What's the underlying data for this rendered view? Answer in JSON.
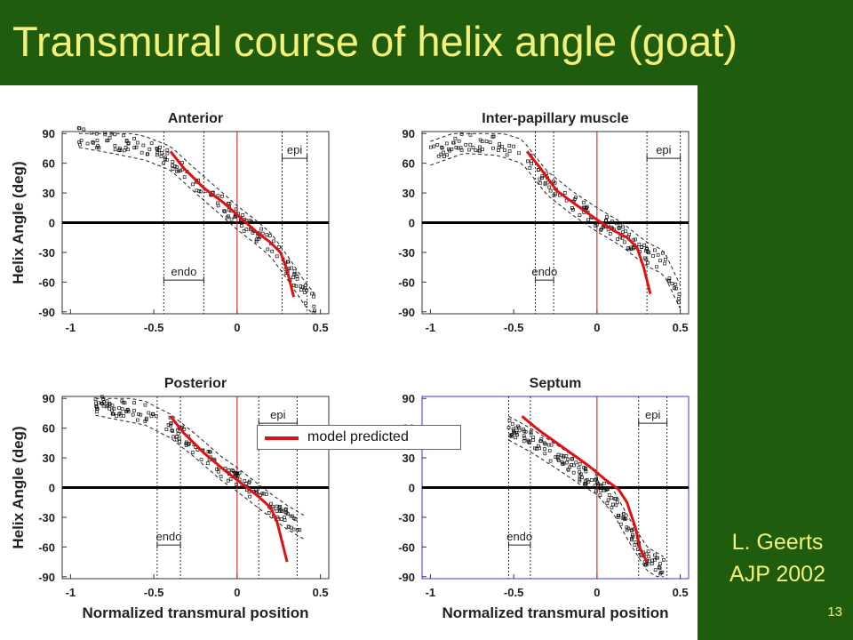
{
  "slide": {
    "title": "Transmural course of helix angle (goat)",
    "citation_line1": "L. Geerts",
    "citation_line2": "AJP 2002",
    "page_number": "13",
    "background_color": "#1f5c0e",
    "title_color": "#f2f27a"
  },
  "legend": {
    "label": "model predicted",
    "color": "#e01010"
  },
  "shared_axes": {
    "x_ticks": [
      "-1",
      "-0.5",
      "0",
      "0.5"
    ],
    "y_ticks": [
      "90",
      "60",
      "30",
      "0",
      "-30",
      "-60",
      "-90"
    ],
    "xlim": [
      -1.05,
      0.55
    ],
    "ylim": [
      -92,
      92
    ]
  },
  "chart_data": [
    {
      "type": "scatter",
      "title": "Anterior",
      "ylabel": "Helix Angle (deg)",
      "xlabel": "",
      "endo_label": "endo",
      "epi_label": "epi",
      "endo_bounds": [
        -0.44,
        -0.2
      ],
      "epi_bounds": [
        0.27,
        0.42
      ],
      "model_predicted": {
        "x": [
          -0.4,
          -0.32,
          -0.2,
          -0.08,
          0.02,
          0.12,
          0.2,
          0.26,
          0.3,
          0.34
        ],
        "y": [
          72,
          55,
          35,
          20,
          5,
          -10,
          -20,
          -30,
          -48,
          -75
        ]
      },
      "measured_band": {
        "x": [
          -0.95,
          -0.75,
          -0.55,
          -0.4,
          -0.25,
          -0.1,
          0.0,
          0.1,
          0.2,
          0.3,
          0.4,
          0.47
        ],
        "y": [
          88,
          82,
          75,
          65,
          42,
          20,
          5,
          -8,
          -22,
          -45,
          -70,
          -85
        ]
      }
    },
    {
      "type": "scatter",
      "title": "Inter-papillary muscle",
      "ylabel": "",
      "xlabel": "",
      "endo_label": "endo",
      "epi_label": "epi",
      "endo_bounds": [
        -0.37,
        -0.26
      ],
      "epi_bounds": [
        0.3,
        0.5
      ],
      "model_predicted": {
        "x": [
          -0.42,
          -0.34,
          -0.24,
          -0.1,
          0.0,
          0.1,
          0.18,
          0.24,
          0.28,
          0.32
        ],
        "y": [
          72,
          55,
          32,
          15,
          3,
          -8,
          -15,
          -25,
          -45,
          -72
        ]
      },
      "measured_band": {
        "x": [
          -1.0,
          -0.8,
          -0.6,
          -0.45,
          -0.3,
          -0.15,
          0.0,
          0.15,
          0.3,
          0.4,
          0.5
        ],
        "y": [
          70,
          82,
          80,
          72,
          40,
          20,
          3,
          -12,
          -32,
          -40,
          -75
        ]
      }
    },
    {
      "type": "scatter",
      "title": "Posterior",
      "ylabel": "Helix Angle (deg)",
      "xlabel": "Normalized transmural position",
      "endo_label": "endo",
      "epi_label": "epi",
      "endo_bounds": [
        -0.48,
        -0.34
      ],
      "epi_bounds": [
        0.13,
        0.36
      ],
      "model_predicted": {
        "x": [
          -0.4,
          -0.32,
          -0.2,
          -0.08,
          0.02,
          0.12,
          0.2,
          0.24,
          0.27,
          0.3
        ],
        "y": [
          72,
          55,
          35,
          18,
          5,
          -8,
          -20,
          -35,
          -55,
          -75
        ]
      },
      "measured_band": {
        "x": [
          -0.85,
          -0.7,
          -0.55,
          -0.4,
          -0.25,
          -0.1,
          0.0,
          0.1,
          0.2,
          0.3,
          0.4
        ],
        "y": [
          85,
          80,
          75,
          62,
          42,
          20,
          8,
          -5,
          -18,
          -30,
          -40
        ]
      }
    },
    {
      "type": "scatter",
      "title": "Septum",
      "ylabel": "",
      "xlabel": "Normalized transmural position",
      "endo_label": "endo",
      "epi_label": "epi",
      "endo_bounds": [
        -0.53,
        -0.4
      ],
      "epi_bounds": [
        0.25,
        0.42
      ],
      "model_predicted": {
        "x": [
          -0.45,
          -0.35,
          -0.2,
          -0.05,
          0.05,
          0.13,
          0.18,
          0.23,
          0.26,
          0.3
        ],
        "y": [
          72,
          58,
          40,
          22,
          8,
          -2,
          -15,
          -40,
          -62,
          -75
        ]
      },
      "measured_band": {
        "x": [
          -0.53,
          -0.4,
          -0.25,
          -0.1,
          0.0,
          0.1,
          0.2,
          0.3,
          0.4
        ],
        "y": [
          60,
          48,
          32,
          15,
          5,
          -15,
          -45,
          -72,
          -82
        ]
      }
    }
  ]
}
